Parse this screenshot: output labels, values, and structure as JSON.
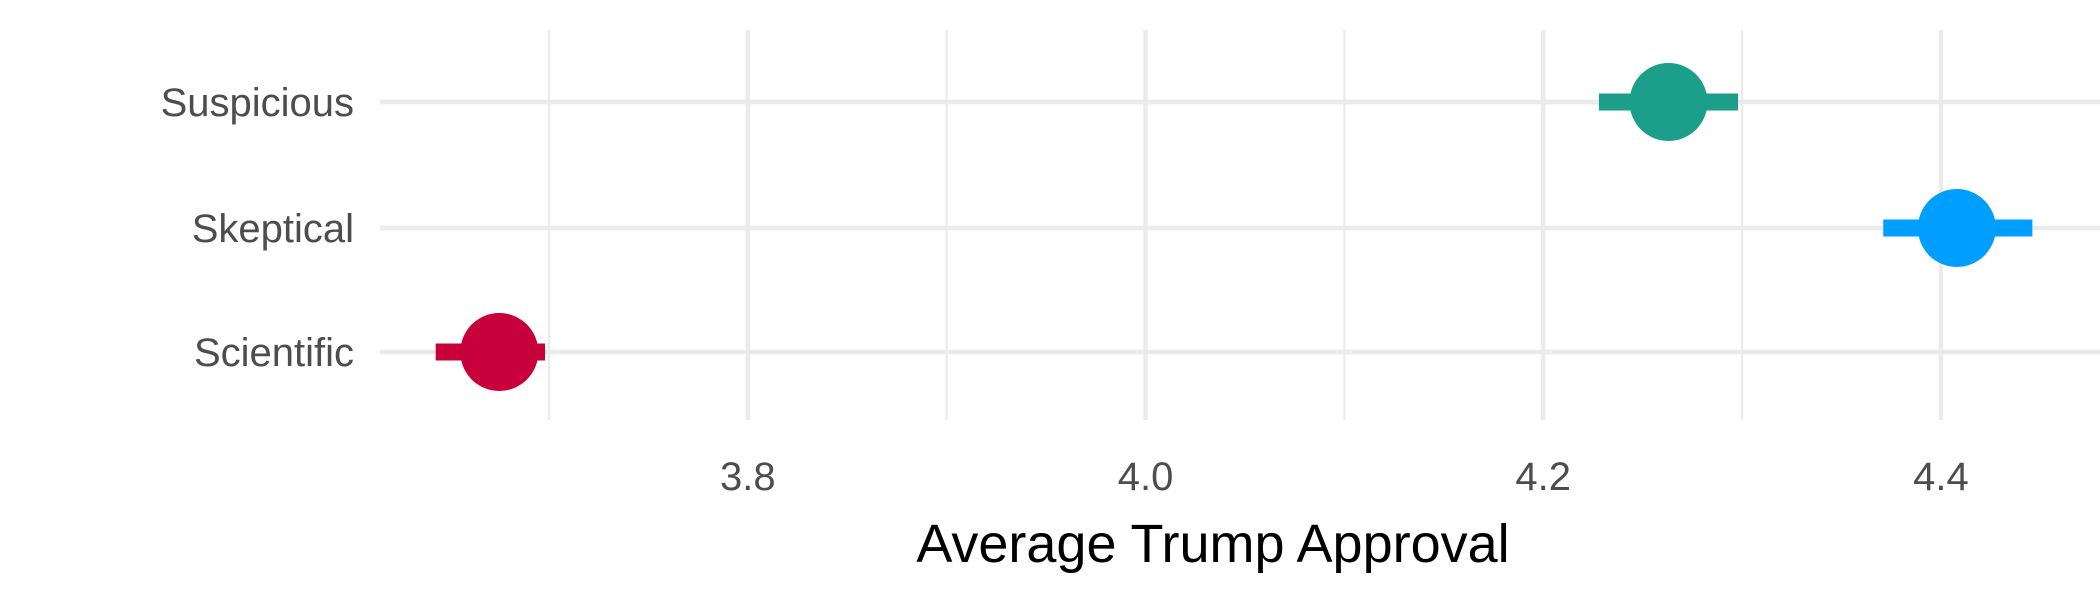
{
  "chart_data": {
    "type": "scatter",
    "title": "",
    "xlabel": "Average Trump Approval",
    "ylabel": "",
    "xlim": [
      3.615,
      4.48
    ],
    "x_ticks": [
      3.8,
      4.0,
      4.2,
      4.4
    ],
    "x_tick_labels": [
      "3.8",
      "4.0",
      "4.2",
      "4.4"
    ],
    "x_minor_ticks": [
      3.7,
      3.9,
      4.1,
      4.3
    ],
    "categories": [
      "Scientific",
      "Skeptical",
      "Suspicious"
    ],
    "points": [
      {
        "category": "Scientific",
        "mean": 3.675,
        "lower": 3.643,
        "upper": 3.698,
        "color": "#C8003C"
      },
      {
        "category": "Skeptical",
        "mean": 4.408,
        "lower": 4.371,
        "upper": 4.446,
        "color": "#009FFF"
      },
      {
        "category": "Suspicious",
        "mean": 4.263,
        "lower": 4.228,
        "upper": 4.298,
        "color": "#1B9E8A"
      }
    ],
    "grid": true,
    "legend": "none"
  }
}
